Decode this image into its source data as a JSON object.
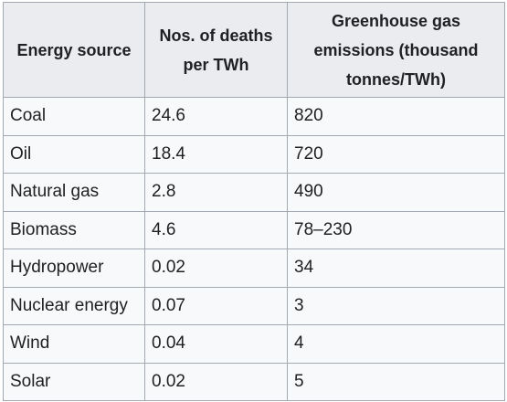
{
  "table": {
    "headers": [
      "Energy source",
      "Nos. of deaths per TWh",
      "Greenhouse gas emissions (thousand tonnes/TWh)"
    ],
    "rows": [
      [
        "Coal",
        "24.6",
        "820"
      ],
      [
        "Oil",
        "18.4",
        "720"
      ],
      [
        "Natural gas",
        "2.8",
        "490"
      ],
      [
        "Biomass",
        "4.6",
        "78–230"
      ],
      [
        "Hydropower",
        "0.02",
        "34"
      ],
      [
        "Nuclear energy",
        "0.07",
        "3"
      ],
      [
        "Wind",
        "0.04",
        "4"
      ],
      [
        "Solar",
        "0.02",
        "5"
      ]
    ]
  }
}
